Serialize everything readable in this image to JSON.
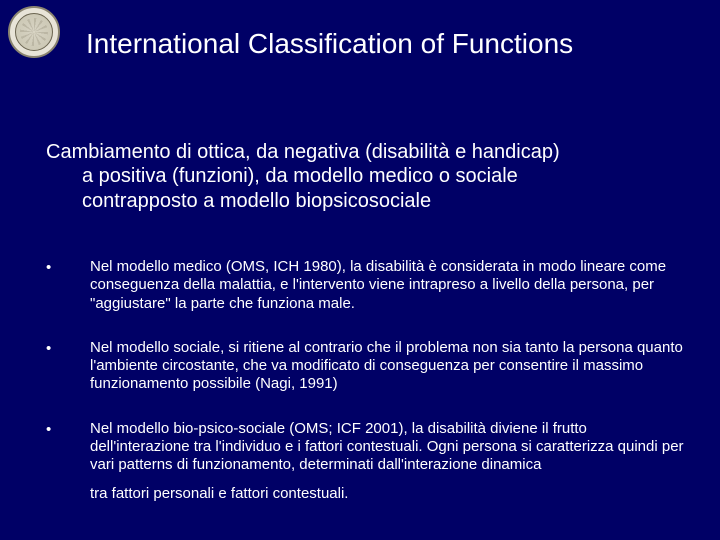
{
  "slide": {
    "background_color": "#000066",
    "text_color": "#ffffff",
    "title": "International Classification of Functions",
    "title_fontsize": 28,
    "intro_line1": "Cambiamento di ottica, da negativa (disabilità e handicap)",
    "intro_line2": "a positiva (funzioni), da modello medico o sociale",
    "intro_line3": "contrapposto a modello biopsicosociale",
    "intro_fontsize": 20,
    "bullets": [
      {
        "text": "Nel modello medico (OMS, ICH 1980), la disabilità è considerata in modo lineare come conseguenza della malattia, e l'intervento viene intrapreso a livello della persona, per \"aggiustare\" la parte che funziona male."
      },
      {
        "text": "Nel modello sociale, si ritiene al contrario che il problema non sia tanto la persona quanto l'ambiente circostante, che va modificato di conseguenza per consentire il massimo funzionamento possibile (Nagi, 1991)"
      },
      {
        "text": "Nel modello bio-psico-sociale (OMS; ICF 2001), la disabilità diviene il frutto dell'interazione tra l'individuo e i fattori contestuali. Ogni persona si caratterizza quindi per vari patterns di funzionamento,  determinati dall'interazione dinamica",
        "final_line": "tra fattori personali e fattori contestuali."
      }
    ],
    "bullet_fontsize": 15,
    "bullet_marker": "•"
  }
}
